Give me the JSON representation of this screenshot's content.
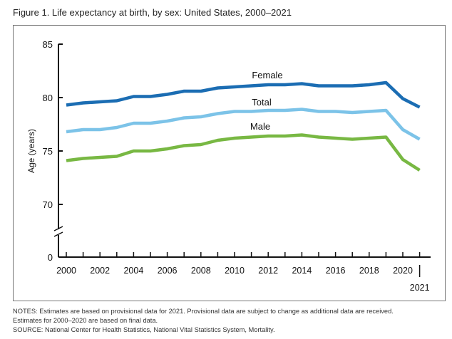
{
  "title": "Figure 1. Life expectancy at birth, by sex: United States, 2000–2021",
  "notes": [
    "NOTES: Estimates are based on provisional data for 2021. Provisional data are subject to change as additional data are received.",
    "Estimates for 2000–2020 are based on final data.",
    "SOURCE: National Center for Health Statistics, National Vital Statistics System, Mortality."
  ],
  "chart_data": {
    "type": "line",
    "title": "Figure 1. Life expectancy at birth, by sex: United States, 2000–2021",
    "xlabel": "",
    "ylabel": "Age (years)",
    "ylim": [
      70,
      85
    ],
    "y_axis_break": true,
    "yticks": [
      "0",
      "70",
      "75",
      "80",
      "85"
    ],
    "xticks": [
      "2000",
      "2002",
      "2004",
      "2006",
      "2008",
      "2010",
      "2012",
      "2014",
      "2016",
      "2018",
      "2020",
      "2021"
    ],
    "grid": false,
    "x": [
      2000,
      2001,
      2002,
      2003,
      2004,
      2005,
      2006,
      2007,
      2008,
      2009,
      2010,
      2011,
      2012,
      2013,
      2014,
      2015,
      2016,
      2017,
      2018,
      2019,
      2020,
      2021
    ],
    "series": [
      {
        "name": "Female",
        "color": "#1b6db3",
        "values": [
          79.3,
          79.5,
          79.6,
          79.7,
          80.1,
          80.1,
          80.3,
          80.6,
          80.6,
          80.9,
          81.0,
          81.1,
          81.2,
          81.2,
          81.3,
          81.1,
          81.1,
          81.1,
          81.2,
          81.4,
          79.9,
          79.1
        ]
      },
      {
        "name": "Total",
        "color": "#7cc3e8",
        "values": [
          76.8,
          77.0,
          77.0,
          77.2,
          77.6,
          77.6,
          77.8,
          78.1,
          78.2,
          78.5,
          78.7,
          78.7,
          78.8,
          78.8,
          78.9,
          78.7,
          78.7,
          78.6,
          78.7,
          78.8,
          77.0,
          76.1
        ]
      },
      {
        "name": "Male",
        "color": "#78b843",
        "values": [
          74.1,
          74.3,
          74.4,
          74.5,
          75.0,
          75.0,
          75.2,
          75.5,
          75.6,
          76.0,
          76.2,
          76.3,
          76.4,
          76.4,
          76.5,
          76.3,
          76.2,
          76.1,
          76.2,
          76.3,
          74.2,
          73.2
        ]
      }
    ]
  }
}
